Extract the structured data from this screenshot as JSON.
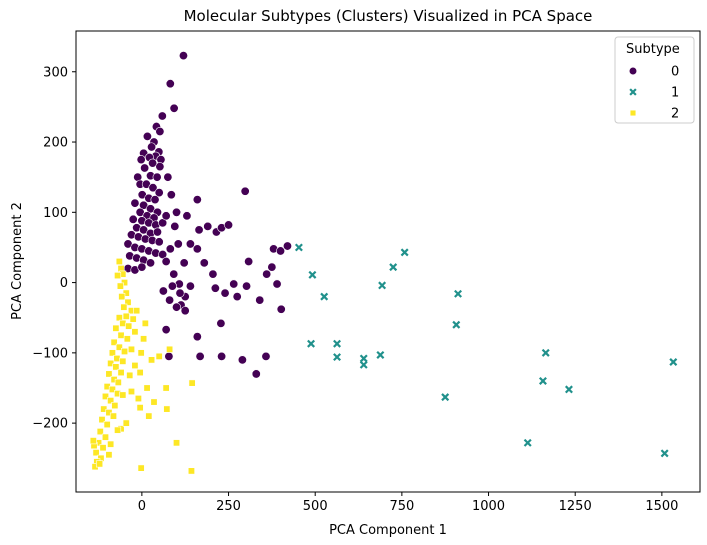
{
  "chart_data": {
    "type": "scatter",
    "title": "Molecular Subtypes (Clusters) Visualized in PCA Space",
    "xlabel": "PCA Component 1",
    "ylabel": "PCA Component 2",
    "xlim": [
      -190,
      1610
    ],
    "ylim": [
      -298,
      358
    ],
    "xticks": [
      0,
      250,
      500,
      750,
      1000,
      1250,
      1500
    ],
    "yticks": [
      -200,
      -100,
      0,
      100,
      200,
      300
    ],
    "grid": false,
    "legend": {
      "title": "Subtype",
      "placement": "top-right"
    },
    "series": [
      {
        "name": "0",
        "marker": "circle",
        "color": "#440154",
        "points": [
          [
            120,
            323
          ],
          [
            82,
            283
          ],
          [
            93,
            248
          ],
          [
            59,
            237
          ],
          [
            42,
            222
          ],
          [
            52,
            215
          ],
          [
            16,
            208
          ],
          [
            35,
            200
          ],
          [
            28,
            193
          ],
          [
            49,
            186
          ],
          [
            5,
            184
          ],
          [
            40,
            180
          ],
          [
            55,
            175
          ],
          [
            22,
            178
          ],
          [
            -2,
            175
          ],
          [
            31,
            170
          ],
          [
            52,
            165
          ],
          [
            8,
            163
          ],
          [
            -12,
            150
          ],
          [
            25,
            152
          ],
          [
            44,
            150
          ],
          [
            -5,
            140
          ],
          [
            13,
            140
          ],
          [
            32,
            135
          ],
          [
            50,
            128
          ],
          [
            1,
            125
          ],
          [
            20,
            120
          ],
          [
            38,
            118
          ],
          [
            -20,
            113
          ],
          [
            5,
            110
          ],
          [
            25,
            105
          ],
          [
            45,
            100
          ],
          [
            -5,
            100
          ],
          [
            15,
            95
          ],
          [
            35,
            92
          ],
          [
            -25,
            90
          ],
          [
            0,
            88
          ],
          [
            20,
            85
          ],
          [
            40,
            82
          ],
          [
            60,
            85
          ],
          [
            -15,
            78
          ],
          [
            5,
            75
          ],
          [
            25,
            70
          ],
          [
            45,
            72
          ],
          [
            -30,
            68
          ],
          [
            -10,
            65
          ],
          [
            10,
            62
          ],
          [
            30,
            60
          ],
          [
            50,
            58
          ],
          [
            -40,
            55
          ],
          [
            -20,
            50
          ],
          [
            0,
            48
          ],
          [
            20,
            45
          ],
          [
            40,
            42
          ],
          [
            -35,
            38
          ],
          [
            -15,
            35
          ],
          [
            5,
            32
          ],
          [
            25,
            28
          ],
          [
            -40,
            20
          ],
          [
            -20,
            18
          ],
          [
            0,
            22
          ],
          [
            75,
            150
          ],
          [
            85,
            125
          ],
          [
            100,
            100
          ],
          [
            70,
            95
          ],
          [
            95,
            80
          ],
          [
            130,
            95
          ],
          [
            160,
            118
          ],
          [
            165,
            75
          ],
          [
            190,
            80
          ],
          [
            215,
            72
          ],
          [
            230,
            78
          ],
          [
            250,
            82
          ],
          [
            105,
            55
          ],
          [
            82,
            48
          ],
          [
            160,
            48
          ],
          [
            180,
            28
          ],
          [
            122,
            28
          ],
          [
            92,
            12
          ],
          [
            108,
            -2
          ],
          [
            62,
            -12
          ],
          [
            80,
            -25
          ],
          [
            125,
            -20
          ],
          [
            140,
            -5
          ],
          [
            205,
            12
          ],
          [
            212,
            -8
          ],
          [
            240,
            -15
          ],
          [
            275,
            -20
          ],
          [
            265,
            -2
          ],
          [
            298,
            130
          ],
          [
            308,
            30
          ],
          [
            302,
            -5
          ],
          [
            360,
            12
          ],
          [
            375,
            22
          ],
          [
            380,
            48
          ],
          [
            400,
            45
          ],
          [
            420,
            52
          ],
          [
            390,
            -2
          ],
          [
            402,
            -38
          ],
          [
            340,
            -25
          ],
          [
            228,
            -58
          ],
          [
            160,
            -77
          ],
          [
            113,
            -32
          ],
          [
            70,
            -67
          ],
          [
            125,
            -40
          ],
          [
            78,
            -105
          ],
          [
            168,
            -105
          ],
          [
            230,
            -105
          ],
          [
            290,
            -110
          ],
          [
            330,
            -130
          ],
          [
            358,
            -105
          ],
          [
            60,
            40
          ],
          [
            88,
            -5
          ],
          [
            100,
            -35
          ],
          [
            110,
            -15
          ],
          [
            70,
            30
          ],
          [
            140,
            55
          ]
        ]
      },
      {
        "name": "1",
        "marker": "x",
        "color": "#21918c",
        "points": [
          [
            453,
            50
          ],
          [
            492,
            11
          ],
          [
            526,
            -20
          ],
          [
            488,
            -87
          ],
          [
            563,
            -87
          ],
          [
            563,
            -106
          ],
          [
            640,
            -108
          ],
          [
            640,
            -117
          ],
          [
            688,
            -103
          ],
          [
            693,
            -4
          ],
          [
            725,
            22
          ],
          [
            758,
            43
          ],
          [
            907,
            -60
          ],
          [
            912,
            -16
          ],
          [
            875,
            -163
          ],
          [
            1165,
            -100
          ],
          [
            1157,
            -140
          ],
          [
            1232,
            -152
          ],
          [
            1113,
            -228
          ],
          [
            1508,
            -243
          ],
          [
            1533,
            -113
          ]
        ]
      },
      {
        "name": "2",
        "marker": "square",
        "color": "#fde725",
        "points": [
          [
            -65,
            30
          ],
          [
            -60,
            20
          ],
          [
            -55,
            12
          ],
          [
            -70,
            10
          ],
          [
            -50,
            0
          ],
          [
            -62,
            -5
          ],
          [
            -45,
            -15
          ],
          [
            -58,
            -20
          ],
          [
            -40,
            -28
          ],
          [
            -52,
            -35
          ],
          [
            -30,
            -40
          ],
          [
            -45,
            -48
          ],
          [
            -65,
            -50
          ],
          [
            -55,
            -58
          ],
          [
            -25,
            -52
          ],
          [
            -38,
            -62
          ],
          [
            -75,
            -65
          ],
          [
            -60,
            -75
          ],
          [
            -20,
            -70
          ],
          [
            -42,
            -80
          ],
          [
            -80,
            -85
          ],
          [
            -65,
            -92
          ],
          [
            -50,
            -98
          ],
          [
            -30,
            -95
          ],
          [
            -85,
            -100
          ],
          [
            -72,
            -108
          ],
          [
            -55,
            -112
          ],
          [
            -90,
            -115
          ],
          [
            -75,
            -120
          ],
          [
            -60,
            -128
          ],
          [
            -95,
            -130
          ],
          [
            -80,
            -138
          ],
          [
            -68,
            -142
          ],
          [
            -100,
            -148
          ],
          [
            -85,
            -152
          ],
          [
            -70,
            -158
          ],
          [
            -105,
            -162
          ],
          [
            -90,
            -168
          ],
          [
            -78,
            -175
          ],
          [
            -110,
            -180
          ],
          [
            -95,
            -185
          ],
          [
            -82,
            -190
          ],
          [
            -115,
            -195
          ],
          [
            -100,
            -202
          ],
          [
            -120,
            -212
          ],
          [
            -105,
            -220
          ],
          [
            -125,
            -228
          ],
          [
            -112,
            -235
          ],
          [
            -132,
            -242
          ],
          [
            -118,
            -250
          ],
          [
            -130,
            -255
          ],
          [
            -135,
            -262
          ],
          [
            -122,
            -258
          ],
          [
            -138,
            -232
          ],
          [
            -140,
            -225
          ],
          [
            -95,
            -245
          ],
          [
            -60,
            -208
          ],
          [
            -10,
            -165
          ],
          [
            -30,
            -155
          ],
          [
            15,
            -150
          ],
          [
            -5,
            -128
          ],
          [
            28,
            -110
          ],
          [
            50,
            -105
          ],
          [
            80,
            -95
          ],
          [
            70,
            -150
          ],
          [
            35,
            -170
          ],
          [
            72,
            -180
          ],
          [
            20,
            -190
          ],
          [
            -5,
            -178
          ],
          [
            100,
            -228
          ],
          [
            145,
            -143
          ],
          [
            143,
            -268
          ],
          [
            -2,
            -264
          ],
          [
            -35,
            -132
          ],
          [
            -55,
            -160
          ],
          [
            -20,
            -118
          ],
          [
            5,
            -80
          ],
          [
            10,
            -58
          ],
          [
            -15,
            -40
          ],
          [
            -2,
            -100
          ],
          [
            -45,
            -200
          ],
          [
            -70,
            -210
          ],
          [
            -90,
            -230
          ]
        ]
      }
    ]
  }
}
